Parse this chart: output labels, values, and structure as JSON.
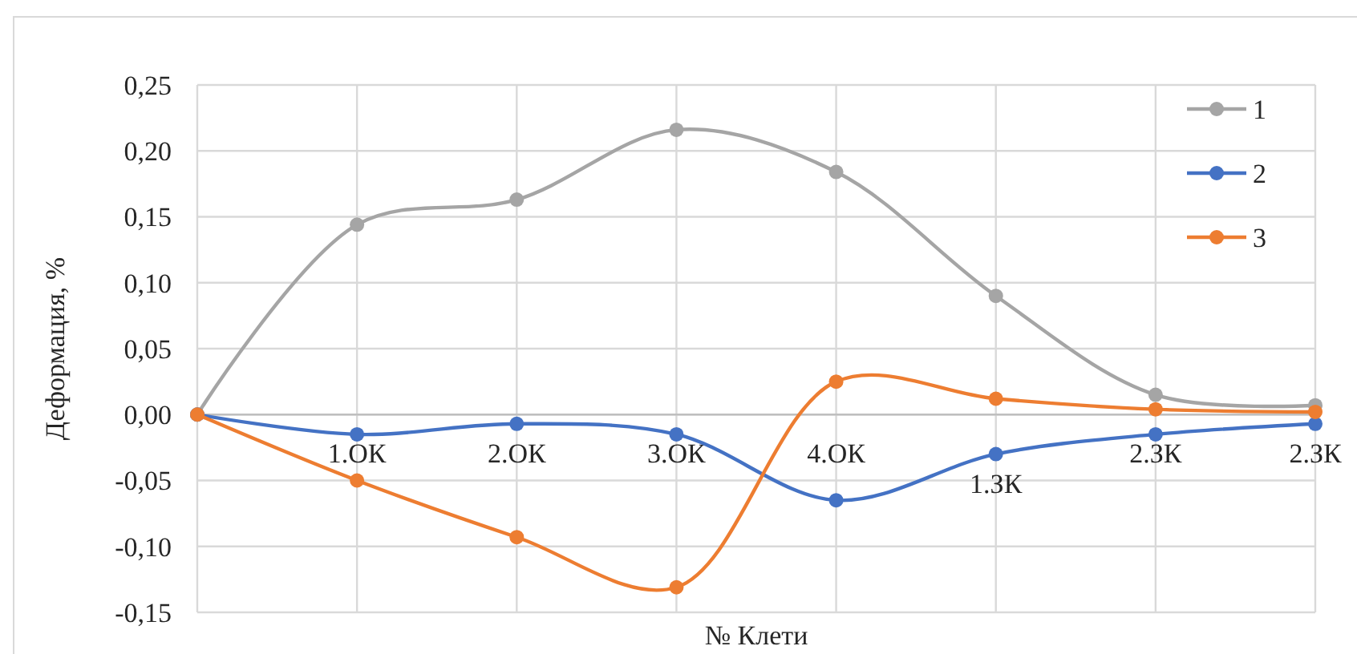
{
  "chart_data": {
    "type": "line",
    "xlabel": "№ Клети",
    "ylabel": "Деформация, %",
    "categories": [
      null,
      "1.ОК",
      "2.ОК",
      "3.ОК",
      "4.ОК",
      "1.ЗК",
      "2.ЗК",
      "2.ЗК"
    ],
    "series": [
      {
        "name": "1",
        "color": "#a5a5a5",
        "values": [
          0,
          0.144,
          0.163,
          0.216,
          0.184,
          0.09,
          0.015,
          0.007
        ]
      },
      {
        "name": "2",
        "color": "#4472c4",
        "values": [
          0,
          -0.015,
          -0.007,
          -0.015,
          -0.065,
          -0.03,
          -0.015,
          -0.007
        ]
      },
      {
        "name": "3",
        "color": "#ed7d31",
        "values": [
          0,
          -0.05,
          -0.093,
          -0.131,
          0.025,
          0.012,
          0.004,
          0.002
        ]
      }
    ],
    "ylim": [
      -0.15,
      0.25
    ],
    "yticks": [
      {
        "value": -0.15,
        "label": "-0,15"
      },
      {
        "value": -0.1,
        "label": "-0,10"
      },
      {
        "value": -0.05,
        "label": "-0,05"
      },
      {
        "value": 0,
        "label": "0,00"
      },
      {
        "value": 0.05,
        "label": "0,05"
      },
      {
        "value": 0.1,
        "label": "0,10"
      },
      {
        "value": 0.15,
        "label": "0,15"
      },
      {
        "value": 0.2,
        "label": "0,20"
      },
      {
        "value": 0.25,
        "label": "0,25"
      }
    ],
    "grid": true,
    "legend": "top right",
    "marker": "circle",
    "line_style": "solid"
  }
}
